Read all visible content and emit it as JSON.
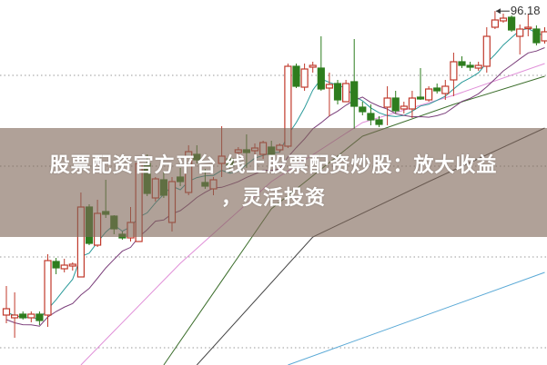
{
  "banner": {
    "line1": "股票配资官方平台 线上股票配资炒股：放大收益",
    "line2": "，灵活投资"
  },
  "chart_data": {
    "type": "candlestick",
    "title": "",
    "high_label": "96.18",
    "grid": "horizontal-dotted",
    "colors": {
      "up": "#c0392b",
      "down": "#2e7d1e",
      "ma5": "#2a9a9a",
      "ma10": "#7b3f7b",
      "pink": "#e08fd8",
      "green": "#3c6e2c",
      "gray": "#444444",
      "blue": "#5aa9d6",
      "banner": "#806858"
    },
    "candles": [
      [
        62.7,
        65.9,
        61.8,
        63.4
      ],
      [
        62.4,
        65.2,
        60.2,
        62.7
      ],
      [
        62.8,
        63.1,
        62.2,
        62.4
      ],
      [
        62.4,
        63.1,
        61.9,
        62.8
      ],
      [
        62.8,
        63.1,
        61.6,
        62.1
      ],
      [
        62.7,
        69.4,
        61.4,
        68.7
      ],
      [
        68.6,
        69.0,
        67.2,
        67.9
      ],
      [
        67.8,
        68.9,
        67.4,
        68.2
      ],
      [
        68.1,
        68.5,
        67.6,
        68.3
      ],
      [
        66.9,
        76.2,
        66.9,
        74.6
      ],
      [
        74.6,
        74.9,
        70.4,
        70.6
      ],
      [
        70.4,
        75.4,
        70.2,
        73.9
      ],
      [
        74.1,
        77.6,
        73.4,
        73.8
      ],
      [
        73.6,
        73.7,
        71.6,
        72.2
      ],
      [
        71.6,
        71.9,
        71.0,
        71.2
      ],
      [
        71.2,
        74.6,
        70.8,
        72.9
      ],
      [
        70.8,
        79.9,
        70.8,
        79.4
      ],
      [
        79.4,
        80.4,
        75.8,
        76.1
      ],
      [
        75.6,
        77.9,
        75.2,
        77.7
      ],
      [
        77.6,
        78.4,
        75.6,
        75.9
      ],
      [
        72.9,
        77.9,
        71.9,
        77.4
      ],
      [
        77.9,
        78.9,
        76.9,
        77.4
      ],
      [
        76.2,
        81.4,
        75.9,
        80.7
      ],
      [
        80.4,
        81.4,
        79.4,
        79.8
      ],
      [
        77.3,
        78.8,
        76.6,
        76.9
      ],
      [
        76.6,
        77.9,
        75.9,
        77.6
      ],
      [
        79.4,
        83.5,
        77.9,
        80.2
      ],
      [
        79.9,
        80.4,
        78.4,
        79.1
      ],
      [
        80.6,
        81.2,
        79.9,
        80.9
      ],
      [
        80.9,
        82.6,
        78.9,
        80.6
      ],
      [
        80.8,
        81.6,
        80.4,
        81.1
      ],
      [
        80.4,
        81.9,
        79.9,
        81.7
      ],
      [
        81.2,
        81.9,
        80.2,
        80.4
      ],
      [
        80.9,
        81.6,
        80.6,
        81.4
      ],
      [
        81.3,
        90.4,
        81.1,
        90.1
      ],
      [
        90.1,
        90.4,
        87.7,
        87.9
      ],
      [
        87.8,
        90.4,
        87.4,
        89.8
      ],
      [
        90.0,
        90.6,
        89.4,
        90.2
      ],
      [
        89.9,
        93.4,
        87.4,
        87.6
      ],
      [
        87.7,
        89.4,
        84.6,
        88.1
      ],
      [
        88.2,
        88.6,
        85.9,
        86.4
      ],
      [
        86.2,
        88.6,
        86.2,
        88.2
      ],
      [
        88.4,
        93.1,
        83.2,
        85.7
      ],
      [
        85.6,
        86.2,
        84.7,
        85.1
      ],
      [
        84.9,
        85.9,
        83.6,
        84.2
      ],
      [
        84.2,
        84.6,
        83.4,
        83.7
      ],
      [
        85.6,
        87.9,
        83.6,
        86.6
      ],
      [
        86.6,
        87.4,
        84.9,
        85.2
      ],
      [
        85.4,
        86.2,
        84.9,
        85.7
      ],
      [
        85.4,
        87.4,
        84.4,
        86.6
      ],
      [
        86.7,
        89.9,
        86.4,
        86.5
      ],
      [
        86.4,
        87.9,
        86.2,
        87.6
      ],
      [
        87.7,
        88.2,
        87.1,
        87.4
      ],
      [
        87.1,
        88.6,
        86.4,
        87.9
      ],
      [
        88.6,
        91.6,
        86.8,
        90.6
      ],
      [
        90.6,
        91.2,
        89.9,
        90.2
      ],
      [
        90.2,
        90.6,
        89.6,
        90.0
      ],
      [
        89.9,
        90.6,
        89.6,
        90.2
      ],
      [
        90.1,
        94.4,
        89.4,
        93.4
      ],
      [
        94.4,
        96.18,
        94.2,
        95.2
      ],
      [
        95.1,
        95.9,
        94.9,
        95.4
      ],
      [
        95.5,
        95.7,
        93.9,
        94.1
      ],
      [
        93.4,
        94.7,
        91.4,
        94.2
      ],
      [
        94.3,
        95.9,
        93.4,
        94.4
      ],
      [
        94.2,
        94.6,
        92.4,
        92.7
      ],
      [
        92.9,
        94.4,
        92.6,
        93.9
      ]
    ],
    "long_lines": [
      {
        "key": "pink",
        "points": [
          [
            9,
            57.2
          ],
          [
            21,
            68.4
          ],
          [
            32,
            77.4
          ],
          [
            43,
            83.9
          ],
          [
            54,
            86.9
          ],
          [
            65,
            90.4
          ]
        ]
      },
      {
        "key": "green",
        "points": [
          [
            19,
            57.2
          ],
          [
            32,
            74.4
          ],
          [
            43,
            82.4
          ],
          [
            54,
            85.9
          ],
          [
            65,
            89.0
          ]
        ]
      },
      {
        "key": "gray",
        "points": [
          [
            23,
            57.2
          ],
          [
            37,
            71.3
          ],
          [
            51,
            77.4
          ],
          [
            65,
            83.3
          ]
        ]
      },
      {
        "key": "blue",
        "points": [
          [
            34,
            57.2
          ],
          [
            65,
            67.4
          ]
        ]
      }
    ],
    "gridlines": [
      89.1,
      79.1,
      69.1,
      59.1
    ]
  }
}
